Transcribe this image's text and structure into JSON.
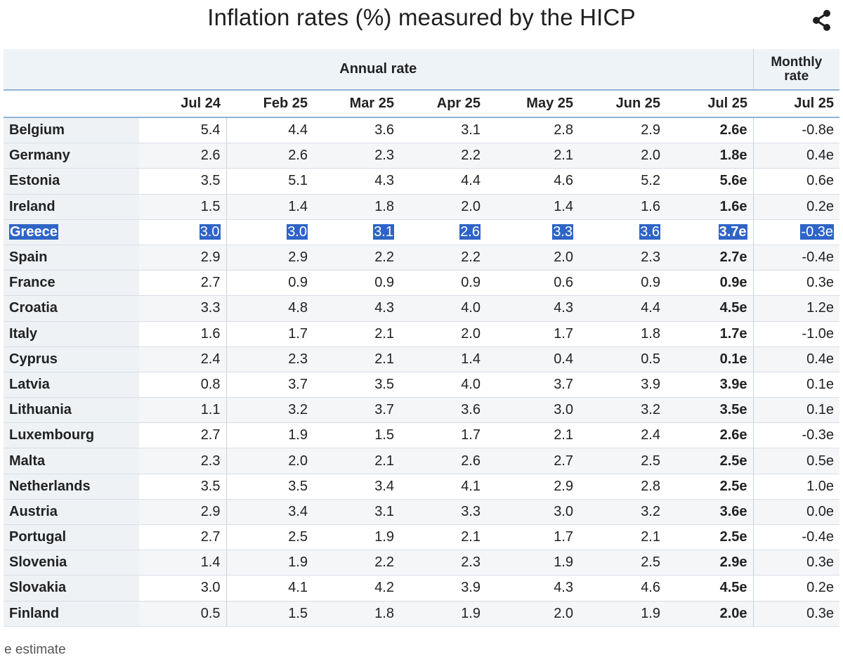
{
  "title": "Inflation rates (%) measured by the HICP",
  "share_icon": "share-icon",
  "header": {
    "annual_label": "Annual rate",
    "monthly_label_line1": "Monthly",
    "monthly_label_line2": "rate",
    "columns": [
      "Jul 24",
      "Feb 25",
      "Mar 25",
      "Apr 25",
      "May 25",
      "Jun 25",
      "Jul 25",
      "Jul 25"
    ]
  },
  "rows": [
    {
      "country": "Belgium",
      "values": [
        "5.4",
        "4.4",
        "3.6",
        "3.1",
        "2.8",
        "2.9",
        "2.6e",
        "-0.8e"
      ]
    },
    {
      "country": "Germany",
      "values": [
        "2.6",
        "2.6",
        "2.3",
        "2.2",
        "2.1",
        "2.0",
        "1.8e",
        "0.4e"
      ]
    },
    {
      "country": "Estonia",
      "values": [
        "3.5",
        "5.1",
        "4.3",
        "4.4",
        "4.6",
        "5.2",
        "5.6e",
        "0.6e"
      ]
    },
    {
      "country": "Ireland",
      "values": [
        "1.5",
        "1.4",
        "1.8",
        "2.0",
        "1.4",
        "1.6",
        "1.6e",
        "0.2e"
      ]
    },
    {
      "country": "Greece",
      "values": [
        "3.0",
        "3.0",
        "3.1",
        "2.6",
        "3.3",
        "3.6",
        "3.7e",
        "-0.3e"
      ],
      "selected": true
    },
    {
      "country": "Spain",
      "values": [
        "2.9",
        "2.9",
        "2.2",
        "2.2",
        "2.0",
        "2.3",
        "2.7e",
        "-0.4e"
      ]
    },
    {
      "country": "France",
      "values": [
        "2.7",
        "0.9",
        "0.9",
        "0.9",
        "0.6",
        "0.9",
        "0.9e",
        "0.3e"
      ]
    },
    {
      "country": "Croatia",
      "values": [
        "3.3",
        "4.8",
        "4.3",
        "4.0",
        "4.3",
        "4.4",
        "4.5e",
        "1.2e"
      ]
    },
    {
      "country": "Italy",
      "values": [
        "1.6",
        "1.7",
        "2.1",
        "2.0",
        "1.7",
        "1.8",
        "1.7e",
        "-1.0e"
      ]
    },
    {
      "country": "Cyprus",
      "values": [
        "2.4",
        "2.3",
        "2.1",
        "1.4",
        "0.4",
        "0.5",
        "0.1e",
        "0.4e"
      ]
    },
    {
      "country": "Latvia",
      "values": [
        "0.8",
        "3.7",
        "3.5",
        "4.0",
        "3.7",
        "3.9",
        "3.9e",
        "0.1e"
      ]
    },
    {
      "country": "Lithuania",
      "values": [
        "1.1",
        "3.2",
        "3.7",
        "3.6",
        "3.0",
        "3.2",
        "3.5e",
        "0.1e"
      ]
    },
    {
      "country": "Luxembourg",
      "values": [
        "2.7",
        "1.9",
        "1.5",
        "1.7",
        "2.1",
        "2.4",
        "2.6e",
        "-0.3e"
      ]
    },
    {
      "country": "Malta",
      "values": [
        "2.3",
        "2.0",
        "2.1",
        "2.6",
        "2.7",
        "2.5",
        "2.5e",
        "0.5e"
      ]
    },
    {
      "country": "Netherlands",
      "values": [
        "3.5",
        "3.5",
        "3.4",
        "4.1",
        "2.9",
        "2.8",
        "2.5e",
        "1.0e"
      ]
    },
    {
      "country": "Austria",
      "values": [
        "2.9",
        "3.4",
        "3.1",
        "3.3",
        "3.0",
        "3.2",
        "3.6e",
        "0.0e"
      ]
    },
    {
      "country": "Portugal",
      "values": [
        "2.7",
        "2.5",
        "1.9",
        "2.1",
        "1.7",
        "2.1",
        "2.5e",
        "-0.4e"
      ]
    },
    {
      "country": "Slovenia",
      "values": [
        "1.4",
        "1.9",
        "2.2",
        "2.3",
        "1.9",
        "2.5",
        "2.9e",
        "0.3e"
      ]
    },
    {
      "country": "Slovakia",
      "values": [
        "3.0",
        "4.1",
        "4.2",
        "3.9",
        "4.3",
        "4.6",
        "4.5e",
        "0.2e"
      ]
    },
    {
      "country": "Finland",
      "values": [
        "0.5",
        "1.5",
        "1.8",
        "1.9",
        "2.0",
        "1.9",
        "2.0e",
        "0.3e"
      ]
    }
  ],
  "footnote": "e estimate",
  "colors": {
    "header_bg": "#eef3f8",
    "header_rule": "#8fb3d6",
    "selection": "#2f64c7"
  }
}
